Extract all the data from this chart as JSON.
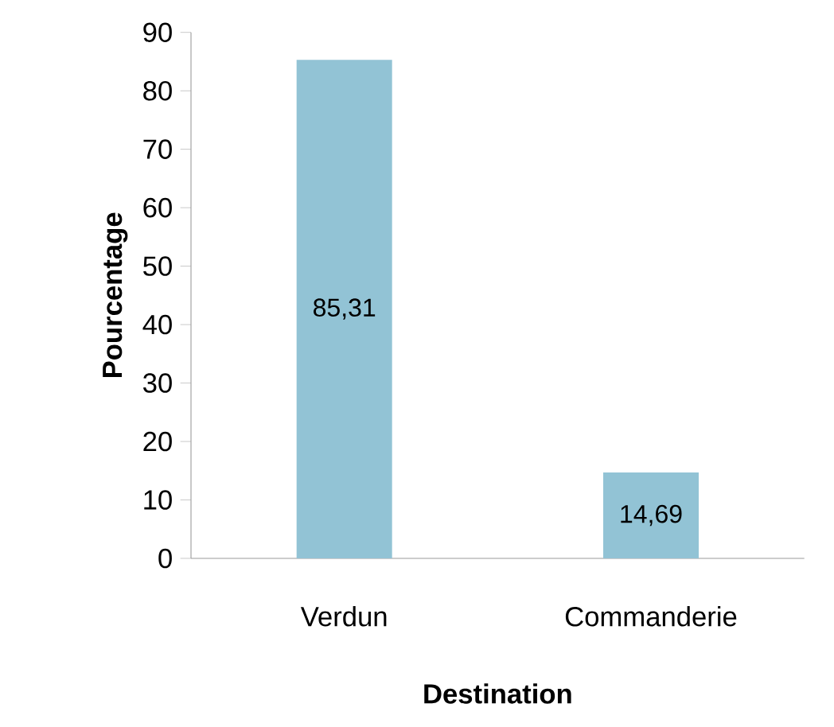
{
  "chart_data": {
    "type": "bar",
    "xlabel": "Destination",
    "ylabel": "Pourcentage",
    "categories": [
      "Verdun",
      "Commanderie"
    ],
    "values": [
      85.31,
      14.69
    ],
    "value_labels": [
      "85,31",
      "14,69"
    ],
    "color": "#92c3d5",
    "ylim": [
      0,
      90
    ],
    "yticks": [
      0,
      10,
      20,
      30,
      40,
      50,
      60,
      70,
      80,
      90
    ]
  }
}
